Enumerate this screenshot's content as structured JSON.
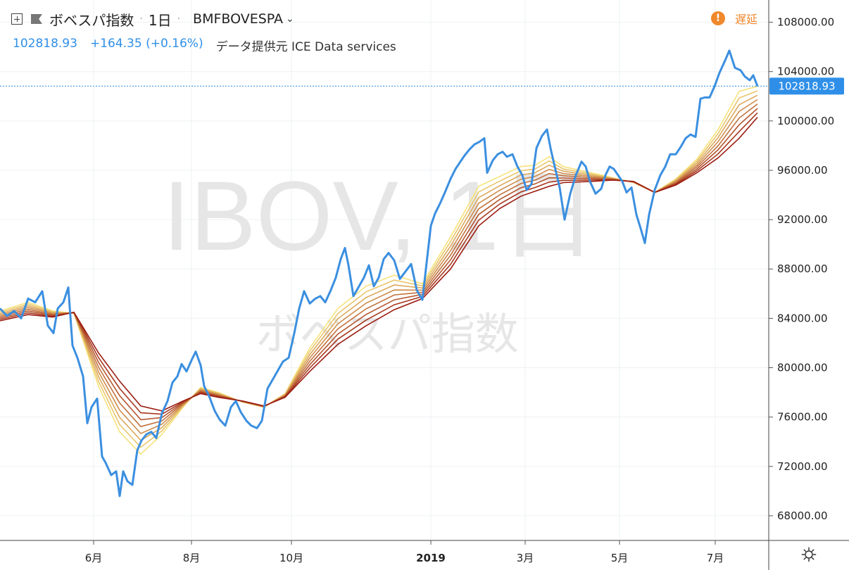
{
  "header": {
    "title": "ボベスパ指数",
    "interval": "1日",
    "symbol": "BMFBOVESPA",
    "price": "102818.93",
    "change": "+164.35 (+0.16%)",
    "source": "データ提供元 ICE Data services",
    "delay_label": "遅延",
    "delay_icon": "!"
  },
  "watermark": {
    "main": "IBOV, 1日",
    "sub": "ボベスパ指数"
  },
  "icons": {
    "add": "plus-square-icon",
    "flag": "flag-icon",
    "settings": "gear-icon",
    "delay": "alert-icon"
  },
  "colors": {
    "price_line": "#3b8fe0",
    "ribbon_light": "#f6e27a",
    "ribbon_dark": "#9b1c10",
    "last_price_bg": "#2f8fe8"
  },
  "chart_data": {
    "type": "line",
    "ylim": [
      66000,
      109800
    ],
    "y_ticks": [
      "108000.00",
      "104000.00",
      "100000.00",
      "96000.00",
      "92000.00",
      "88000.00",
      "84000.00",
      "80000.00",
      "76000.00",
      "72000.00",
      "68000.00"
    ],
    "x_ticks": [
      "6月",
      "8月",
      "10月",
      "2019",
      "3月",
      "5月",
      "7月"
    ],
    "last_price": "102818.93",
    "price_points": [
      [
        0,
        84800
      ],
      [
        10,
        84200
      ],
      [
        20,
        84600
      ],
      [
        30,
        84000
      ],
      [
        40,
        85600
      ],
      [
        50,
        85300
      ],
      [
        60,
        86200
      ],
      [
        68,
        83400
      ],
      [
        76,
        82800
      ],
      [
        82,
        84800
      ],
      [
        90,
        85300
      ],
      [
        97,
        86500
      ],
      [
        103,
        81800
      ],
      [
        110,
        80800
      ],
      [
        118,
        79300
      ],
      [
        124,
        75500
      ],
      [
        130,
        76800
      ],
      [
        138,
        77500
      ],
      [
        145,
        72800
      ],
      [
        150,
        72300
      ],
      [
        158,
        71300
      ],
      [
        165,
        71600
      ],
      [
        170,
        69600
      ],
      [
        175,
        71600
      ],
      [
        181,
        70800
      ],
      [
        188,
        70500
      ],
      [
        195,
        73300
      ],
      [
        201,
        74100
      ],
      [
        208,
        74600
      ],
      [
        215,
        74800
      ],
      [
        222,
        74300
      ],
      [
        230,
        76300
      ],
      [
        238,
        77300
      ],
      [
        245,
        78800
      ],
      [
        252,
        79300
      ],
      [
        258,
        80300
      ],
      [
        265,
        79700
      ],
      [
        272,
        80600
      ],
      [
        278,
        81300
      ],
      [
        285,
        80200
      ],
      [
        290,
        78500
      ],
      [
        297,
        77700
      ],
      [
        305,
        76500
      ],
      [
        312,
        75800
      ],
      [
        320,
        75300
      ],
      [
        328,
        76800
      ],
      [
        335,
        77300
      ],
      [
        342,
        76400
      ],
      [
        350,
        75700
      ],
      [
        357,
        75300
      ],
      [
        365,
        75100
      ],
      [
        372,
        75700
      ],
      [
        380,
        78300
      ],
      [
        388,
        79100
      ],
      [
        395,
        79800
      ],
      [
        402,
        80500
      ],
      [
        410,
        80800
      ],
      [
        418,
        82800
      ],
      [
        425,
        84800
      ],
      [
        432,
        86200
      ],
      [
        440,
        85200
      ],
      [
        448,
        85600
      ],
      [
        455,
        85800
      ],
      [
        462,
        85300
      ],
      [
        470,
        86300
      ],
      [
        477,
        87300
      ],
      [
        484,
        88800
      ],
      [
        490,
        89700
      ],
      [
        495,
        88300
      ],
      [
        502,
        85800
      ],
      [
        510,
        86600
      ],
      [
        517,
        87300
      ],
      [
        524,
        88300
      ],
      [
        531,
        86600
      ],
      [
        538,
        87300
      ],
      [
        545,
        88800
      ],
      [
        552,
        89300
      ],
      [
        560,
        88700
      ],
      [
        568,
        87200
      ],
      [
        576,
        87800
      ],
      [
        584,
        88400
      ],
      [
        592,
        86300
      ],
      [
        600,
        85500
      ],
      [
        606,
        88500
      ],
      [
        612,
        91500
      ],
      [
        618,
        92500
      ],
      [
        625,
        93300
      ],
      [
        632,
        94200
      ],
      [
        640,
        95300
      ],
      [
        647,
        96100
      ],
      [
        654,
        96700
      ],
      [
        660,
        97200
      ],
      [
        667,
        97700
      ],
      [
        674,
        98100
      ],
      [
        681,
        98300
      ],
      [
        688,
        98600
      ],
      [
        692,
        95800
      ],
      [
        700,
        96800
      ],
      [
        707,
        97300
      ],
      [
        714,
        97500
      ],
      [
        720,
        97100
      ],
      [
        728,
        97300
      ],
      [
        735,
        96300
      ],
      [
        742,
        95600
      ],
      [
        748,
        94400
      ],
      [
        755,
        94900
      ],
      [
        762,
        97800
      ],
      [
        770,
        98800
      ],
      [
        777,
        99300
      ],
      [
        782,
        97800
      ],
      [
        788,
        96300
      ],
      [
        795,
        94600
      ],
      [
        802,
        92000
      ],
      [
        810,
        94100
      ],
      [
        818,
        95600
      ],
      [
        826,
        96700
      ],
      [
        832,
        96300
      ],
      [
        838,
        95100
      ],
      [
        846,
        94100
      ],
      [
        854,
        94500
      ],
      [
        860,
        95600
      ],
      [
        866,
        96300
      ],
      [
        872,
        96100
      ],
      [
        878,
        95600
      ],
      [
        884,
        95100
      ],
      [
        890,
        94200
      ],
      [
        897,
        94600
      ],
      [
        904,
        92400
      ],
      [
        910,
        91300
      ],
      [
        916,
        90100
      ],
      [
        922,
        92400
      ],
      [
        930,
        94400
      ],
      [
        938,
        95600
      ],
      [
        945,
        96300
      ],
      [
        952,
        97300
      ],
      [
        960,
        97300
      ],
      [
        967,
        97900
      ],
      [
        974,
        98600
      ],
      [
        981,
        98900
      ],
      [
        988,
        98700
      ],
      [
        995,
        101800
      ],
      [
        1001,
        101900
      ],
      [
        1008,
        101900
      ],
      [
        1015,
        102800
      ],
      [
        1022,
        103900
      ],
      [
        1030,
        104900
      ],
      [
        1036,
        105700
      ],
      [
        1044,
        104300
      ],
      [
        1052,
        104100
      ],
      [
        1058,
        103600
      ],
      [
        1065,
        103300
      ],
      [
        1070,
        103700
      ],
      [
        1076,
        102819
      ]
    ],
    "ribbon": {
      "count": 8,
      "lightest": "#f6e27a",
      "darkest": "#9b1c10",
      "top": [
        [
          0,
          84600
        ],
        [
          40,
          85300
        ],
        [
          75,
          84600
        ],
        [
          105,
          84400
        ],
        [
          140,
          78500
        ],
        [
          170,
          74800
        ],
        [
          200,
          73000
        ],
        [
          230,
          74600
        ],
        [
          260,
          76800
        ],
        [
          285,
          78400
        ],
        [
          310,
          78000
        ],
        [
          345,
          77200
        ],
        [
          375,
          76800
        ],
        [
          405,
          77900
        ],
        [
          440,
          81600
        ],
        [
          480,
          84800
        ],
        [
          520,
          86600
        ],
        [
          560,
          87500
        ],
        [
          600,
          86800
        ],
        [
          640,
          90600
        ],
        [
          680,
          94700
        ],
        [
          710,
          95500
        ],
        [
          740,
          96300
        ],
        [
          760,
          96400
        ],
        [
          780,
          97100
        ],
        [
          800,
          96300
        ],
        [
          840,
          95800
        ],
        [
          870,
          95400
        ],
        [
          900,
          95000
        ],
        [
          930,
          94200
        ],
        [
          960,
          95300
        ],
        [
          990,
          96900
        ],
        [
          1020,
          99300
        ],
        [
          1050,
          102400
        ],
        [
          1076,
          102800
        ]
      ],
      "bottom": [
        [
          0,
          83800
        ],
        [
          40,
          84300
        ],
        [
          75,
          84100
        ],
        [
          105,
          84500
        ],
        [
          140,
          81200
        ],
        [
          170,
          78900
        ],
        [
          200,
          76900
        ],
        [
          230,
          76500
        ],
        [
          260,
          77300
        ],
        [
          285,
          77900
        ],
        [
          310,
          77600
        ],
        [
          345,
          77300
        ],
        [
          375,
          76900
        ],
        [
          405,
          77600
        ],
        [
          440,
          79700
        ],
        [
          480,
          81900
        ],
        [
          520,
          83400
        ],
        [
          560,
          84700
        ],
        [
          600,
          85600
        ],
        [
          640,
          88000
        ],
        [
          680,
          91500
        ],
        [
          710,
          92900
        ],
        [
          740,
          93900
        ],
        [
          760,
          94300
        ],
        [
          780,
          94700
        ],
        [
          800,
          95000
        ],
        [
          840,
          95100
        ],
        [
          870,
          95200
        ],
        [
          900,
          95100
        ],
        [
          930,
          94200
        ],
        [
          960,
          94800
        ],
        [
          990,
          95800
        ],
        [
          1020,
          97000
        ],
        [
          1050,
          98600
        ],
        [
          1076,
          100300
        ]
      ]
    }
  }
}
